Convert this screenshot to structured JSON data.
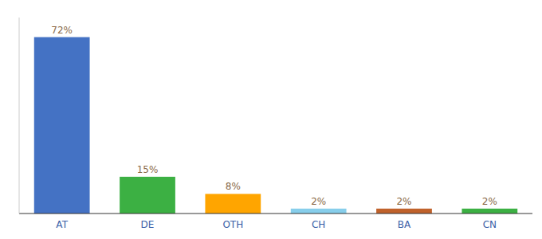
{
  "chart_data": {
    "type": "bar",
    "categories": [
      "AT",
      "DE",
      "OTH",
      "CH",
      "BA",
      "CN"
    ],
    "values": [
      72,
      15,
      8,
      2,
      2,
      2
    ],
    "value_labels": [
      "72%",
      "15%",
      "8%",
      "2%",
      "2%",
      "2%"
    ],
    "colors": [
      "#4472C4",
      "#3CB043",
      "#FFA500",
      "#87CEEB",
      "#C0622B",
      "#3CB043"
    ],
    "ylim": [
      0,
      80
    ],
    "grid": false,
    "data_labels": true,
    "tick_labels": "x"
  }
}
